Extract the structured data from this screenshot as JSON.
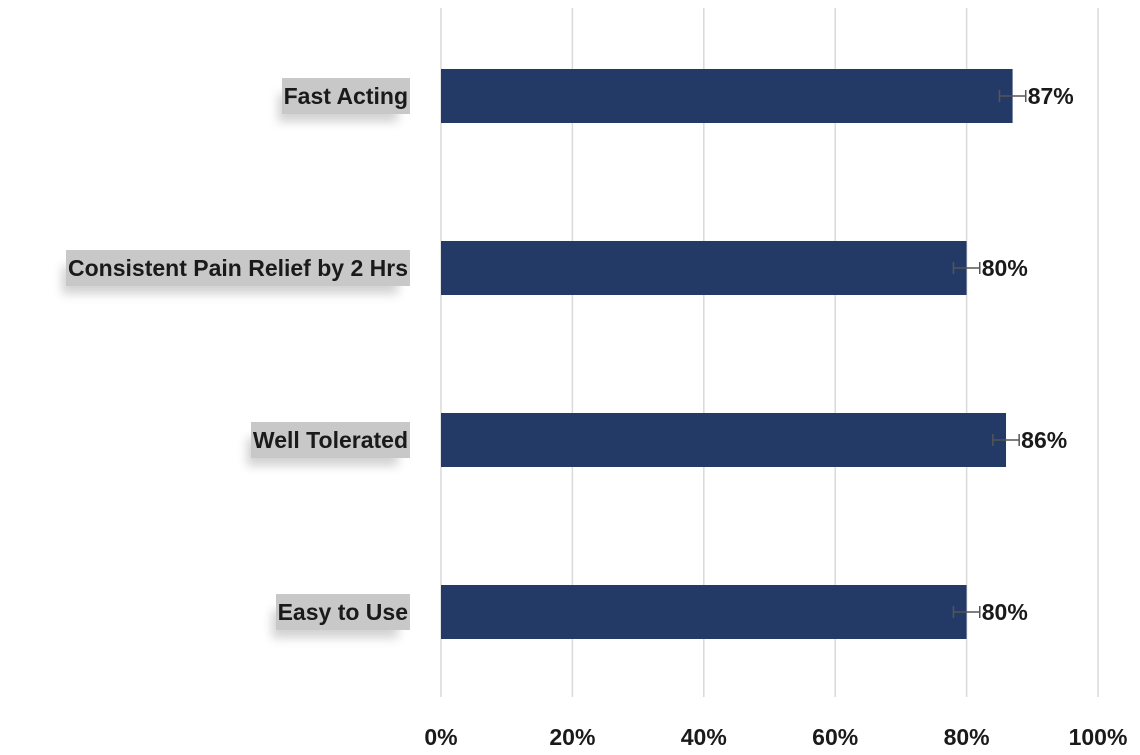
{
  "chart_data": {
    "type": "bar",
    "orientation": "horizontal",
    "categories": [
      "Fast Acting",
      "Consistent Pain Relief by 2 Hrs",
      "Well Tolerated",
      "Easy to Use"
    ],
    "values": [
      87,
      80,
      86,
      80
    ],
    "value_labels": [
      "87%",
      "80%",
      "86%",
      "80%"
    ],
    "error": [
      2,
      2,
      2,
      2
    ],
    "xlim": [
      0,
      100
    ],
    "x_ticks": [
      0,
      20,
      40,
      60,
      80,
      100
    ],
    "x_tick_labels": [
      "0%",
      "20%",
      "40%",
      "60%",
      "80%",
      "100%"
    ],
    "title": "",
    "xlabel": "",
    "ylabel": "",
    "grid": "vertical",
    "legend": "none",
    "bar_color": "#243a66",
    "grid_color": "#d9d9d9",
    "label_bg_color": "#c8c8c8"
  }
}
